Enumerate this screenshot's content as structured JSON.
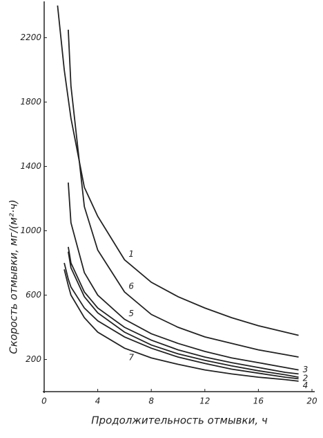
{
  "chart_data": {
    "type": "line",
    "xlabel": "Продолжительность отмывки, ч",
    "ylabel": "Скорость отмывки, мг/(м²·ч)",
    "x": [
      1,
      1.5,
      1.8,
      2,
      3,
      4,
      6,
      8,
      10,
      12,
      14,
      16,
      18,
      19
    ],
    "series": [
      {
        "name": "1",
        "color": "#222222",
        "values": [
          2400,
          2000,
          1820,
          1700,
          1270,
          1090,
          820,
          680,
          590,
          520,
          460,
          410,
          370,
          350
        ]
      },
      {
        "name": "6",
        "color": "#222222",
        "values": [
          null,
          null,
          2250,
          1900,
          1150,
          880,
          620,
          480,
          400,
          340,
          300,
          260,
          230,
          215
        ]
      },
      {
        "name": "5",
        "color": "#222222",
        "values": [
          null,
          null,
          1300,
          1050,
          740,
          600,
          450,
          360,
          300,
          250,
          210,
          180,
          150,
          135
        ]
      },
      {
        "name": "3",
        "color": "#222222",
        "values": [
          null,
          null,
          900,
          800,
          620,
          520,
          400,
          320,
          260,
          215,
          180,
          150,
          120,
          110
        ]
      },
      {
        "name": "2",
        "color": "#222222",
        "values": [
          null,
          null,
          870,
          770,
          590,
          490,
          370,
          290,
          235,
          195,
          160,
          130,
          105,
          90
        ]
      },
      {
        "name": "4",
        "color": "#222222",
        "values": [
          null,
          800,
          700,
          650,
          520,
          440,
          340,
          270,
          215,
          175,
          140,
          115,
          90,
          80
        ]
      },
      {
        "name": "7",
        "color": "#222222",
        "values": [
          null,
          760,
          660,
          600,
          460,
          370,
          270,
          210,
          170,
          135,
          110,
          90,
          75,
          65
        ]
      }
    ],
    "xlim": [
      0,
      20
    ],
    "xticks": [
      0,
      4,
      8,
      12,
      16,
      20
    ],
    "ylim": [
      0,
      2400
    ],
    "yticks": [
      200,
      600,
      1000,
      1400,
      1800,
      2200
    ]
  }
}
